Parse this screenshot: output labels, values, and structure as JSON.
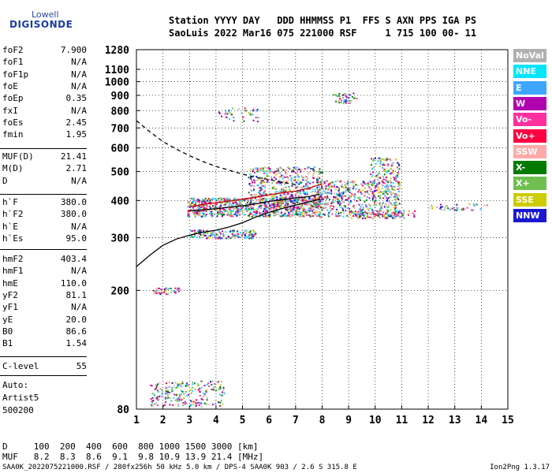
{
  "logo": {
    "line1": "Lowell",
    "line2": "DIGISONDE"
  },
  "header": {
    "line1": "Station YYYY DAY   DDD HHMMSS P1  FFS S AXN PPS IGA PS",
    "line2": "SaoLuis 2022 Mar16 075 221000 RSF     1 715 100 00- 11"
  },
  "params_a": [
    {
      "name": "foF2",
      "value": "7.900"
    },
    {
      "name": "foF1",
      "value": "N/A"
    },
    {
      "name": "foF1p",
      "value": "N/A"
    },
    {
      "name": "foE",
      "value": "N/A"
    },
    {
      "name": "foEp",
      "value": "0.35"
    },
    {
      "name": "fxI",
      "value": "N/A"
    },
    {
      "name": "foEs",
      "value": "2.45"
    },
    {
      "name": "fmin",
      "value": "1.95"
    }
  ],
  "params_b": [
    {
      "name": "MUF(D)",
      "value": "21.41"
    },
    {
      "name": "M(D)",
      "value": "2.71"
    },
    {
      "name": "D",
      "value": "N/A"
    }
  ],
  "params_c": [
    {
      "name": "h`F",
      "value": "380.0"
    },
    {
      "name": "h`F2",
      "value": "380.0"
    },
    {
      "name": "h`E",
      "value": "N/A"
    },
    {
      "name": "h`Es",
      "value": "95.0"
    }
  ],
  "params_d": [
    {
      "name": "hmF2",
      "value": "403.4"
    },
    {
      "name": "hmF1",
      "value": "N/A"
    },
    {
      "name": "hmE",
      "value": "110.0"
    },
    {
      "name": "yF2",
      "value": "81.1"
    },
    {
      "name": "yF1",
      "value": "N/A"
    },
    {
      "name": "yE",
      "value": "20.0"
    },
    {
      "name": "B0",
      "value": "86.6"
    },
    {
      "name": "B1",
      "value": "1.54"
    }
  ],
  "params_e": [
    {
      "name": "C-level",
      "value": "55"
    }
  ],
  "autoscale": {
    "line1": "Auto:",
    "line2": "Artist5",
    "line3": "500200"
  },
  "legend": [
    {
      "label": "NoVal",
      "color": "#b0b0b0"
    },
    {
      "label": "NNE",
      "color": "#00e6ff"
    },
    {
      "label": "E",
      "color": "#3fa6ff"
    },
    {
      "label": "W",
      "color": "#b000b0"
    },
    {
      "label": "Vo-",
      "color": "#ff2fa0"
    },
    {
      "label": "Vo+",
      "color": "#ff0040"
    },
    {
      "label": "SSW",
      "color": "#ffaaaa"
    },
    {
      "label": "X-",
      "color": "#007a00"
    },
    {
      "label": "X+",
      "color": "#6fbf50"
    },
    {
      "label": "SSE",
      "color": "#cccc00"
    },
    {
      "label": "NNW",
      "color": "#1a18d0"
    }
  ],
  "bottom": {
    "d_row": "D     100  200  400  600  800 1000 1500 3000 [km]",
    "muf_row": "MUF   8.2  8.3  8.6  9.1  9.8 10.9 13.9 21.4 [MHz]"
  },
  "footer": {
    "left": "SAA0K_2022075221000.RSF / 280fx256h 50 kHz 5.0 km / DPS-4 SAA0K 903 / 2.6 S 315.8 E",
    "right": "Ion2Png 1.3.17"
  },
  "chart_data": {
    "type": "scatter",
    "title": "",
    "xlabel": "",
    "ylabel": "",
    "xlim": [
      1,
      15
    ],
    "ylim": [
      80,
      1280
    ],
    "y_scale": "log",
    "x_ticks": [
      "1",
      "2",
      "3",
      "4",
      "5",
      "6",
      "7",
      "8",
      "9",
      "10",
      "11",
      "12",
      "13",
      "14",
      "15"
    ],
    "y_ticks": [
      "80",
      "200",
      "300",
      "400",
      "500",
      "600",
      "700",
      "800",
      "900",
      "1000",
      "1100",
      "1280"
    ],
    "grid": true,
    "legend_position": "right",
    "series": [
      {
        "key": "o_trace",
        "color": "#000000",
        "style": "solid",
        "x": [
          1.0,
          1.5,
          2.0,
          2.5,
          3.0,
          3.5,
          4.0,
          4.5,
          5.0,
          5.5,
          6.0,
          6.5,
          7.0,
          7.5,
          7.9
        ],
        "y": [
          240,
          262,
          283,
          297,
          306,
          313,
          318,
          326,
          337,
          352,
          365,
          376,
          386,
          396,
          403
        ]
      },
      {
        "key": "profile_lower",
        "color": "#000000",
        "style": "solid",
        "x": [
          3.0,
          3.5,
          4.0,
          4.5,
          5.0,
          5.5,
          6.0,
          6.5,
          7.0,
          7.5,
          7.9
        ],
        "y": [
          370,
          372,
          375,
          380,
          384,
          390,
          397,
          402,
          408,
          412,
          420
        ]
      },
      {
        "key": "x_trace",
        "color": "#c00000",
        "style": "solid",
        "x": [
          3.0,
          3.5,
          4.0,
          4.5,
          5.0,
          5.5,
          6.0,
          6.5,
          7.0,
          7.5,
          8.0
        ],
        "y": [
          380,
          388,
          393,
          398,
          404,
          410,
          418,
          424,
          430,
          440,
          455
        ]
      },
      {
        "key": "muf_curve",
        "color": "#000000",
        "style": "dashed",
        "x": [
          1.0,
          1.5,
          2.0,
          2.5,
          3.0,
          3.5,
          4.0,
          4.5,
          5.0,
          5.5,
          6.0,
          6.5,
          7.0
        ],
        "y": [
          740,
          680,
          630,
          595,
          565,
          540,
          520,
          505,
          490,
          478,
          470,
          460,
          452
        ]
      }
    ]
  }
}
